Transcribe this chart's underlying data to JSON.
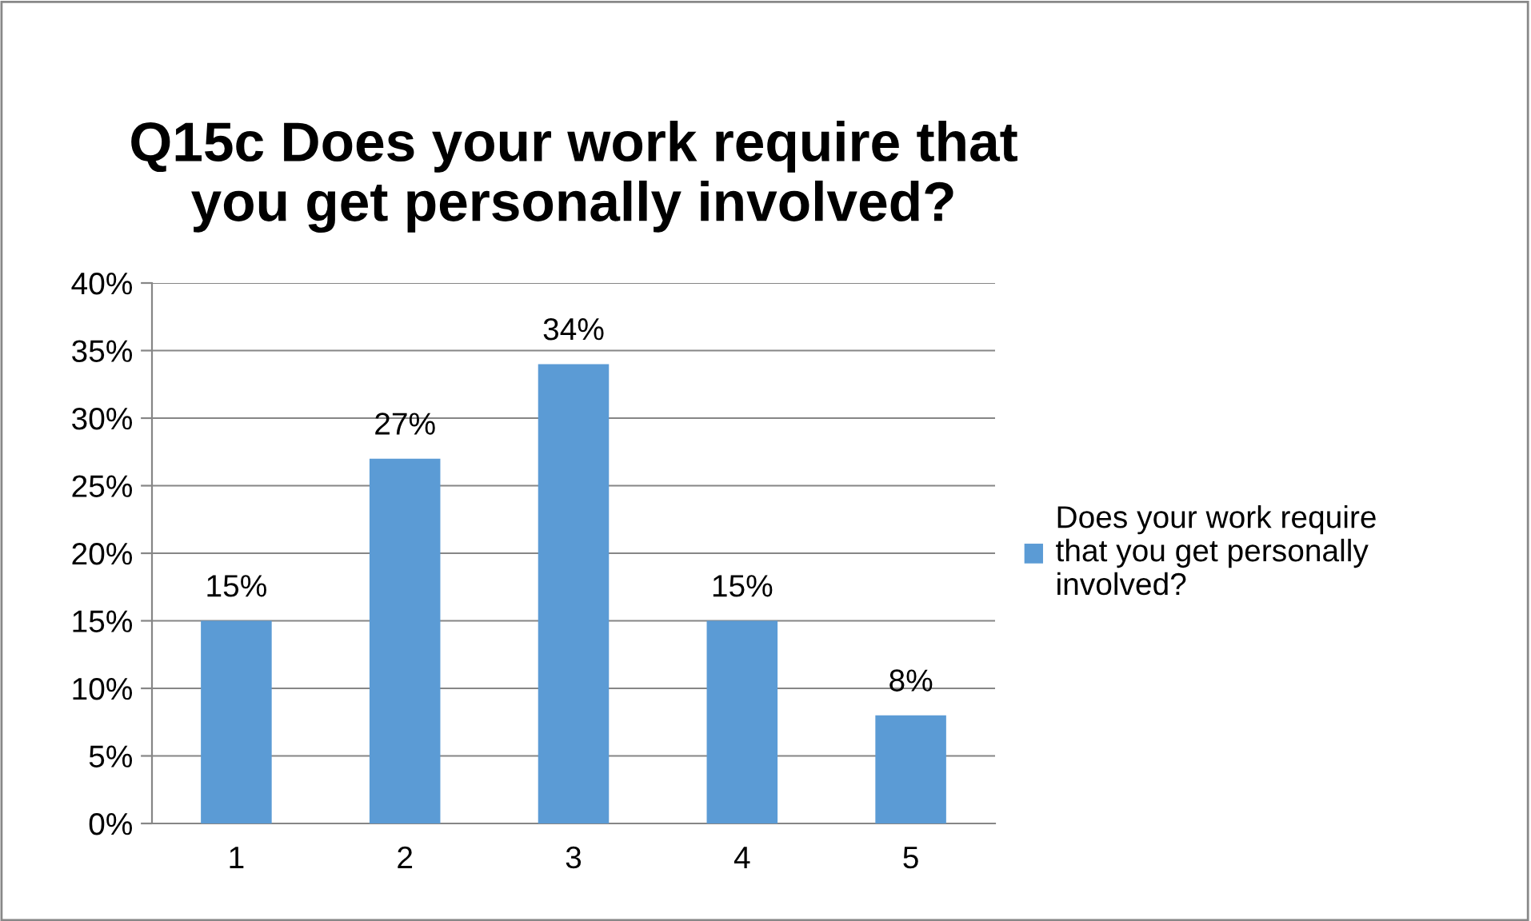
{
  "chart_data": {
    "type": "bar",
    "title": "Q15c Does your work require that\nyou get personally involved?",
    "categories": [
      "1",
      "2",
      "3",
      "4",
      "5"
    ],
    "series": [
      {
        "name": "Does your work require\nthat you get personally\ninvolved?",
        "color": "#5b9bd5",
        "values": [
          15,
          27,
          34,
          15,
          8
        ],
        "value_labels": [
          "15%",
          "27%",
          "34%",
          "15%",
          "8%"
        ]
      }
    ],
    "ylim": [
      0,
      40
    ],
    "yticks": [
      {
        "value": 0,
        "label": "0%"
      },
      {
        "value": 5,
        "label": "5%"
      },
      {
        "value": 10,
        "label": "10%"
      },
      {
        "value": 15,
        "label": "15%"
      },
      {
        "value": 20,
        "label": "20%"
      },
      {
        "value": 25,
        "label": "25%"
      },
      {
        "value": 30,
        "label": "30%"
      },
      {
        "value": 35,
        "label": "35%"
      },
      {
        "value": 40,
        "label": "40%"
      }
    ],
    "grid": "y",
    "legend": "right"
  }
}
